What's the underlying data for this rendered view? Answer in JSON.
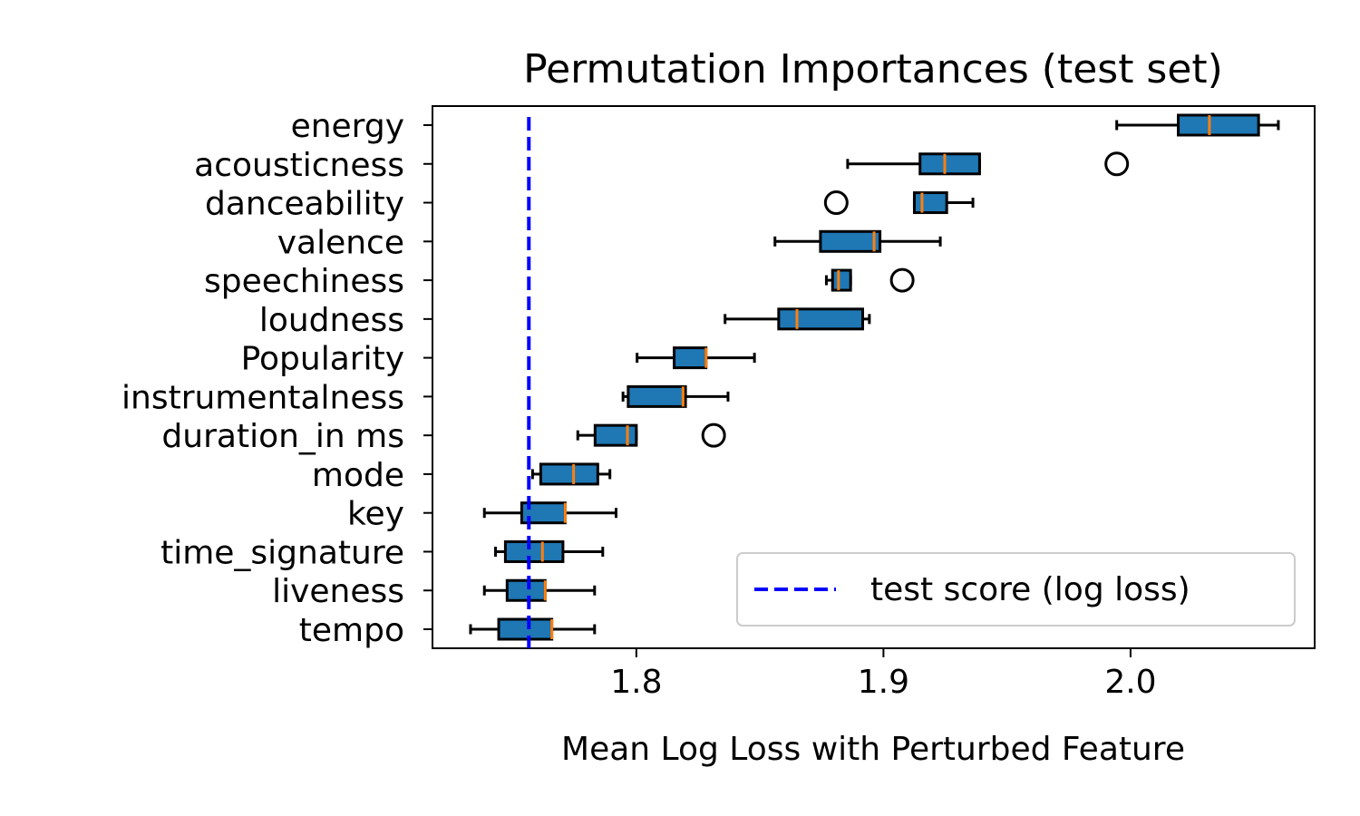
{
  "chart_data": {
    "type": "boxplot",
    "orientation": "horizontal",
    "title": "Permutation Importances (test set)",
    "xlabel": "Mean Log Loss with Perturbed Feature",
    "ylabel": "",
    "xlim": [
      1.7175,
      2.0745
    ],
    "xticks": [
      1.8,
      1.9,
      2.0
    ],
    "xtick_labels": [
      "1.8",
      "1.9",
      "2.0"
    ],
    "grid": false,
    "legend": {
      "placement": "lower-right",
      "entries": [
        {
          "label": "test score (log loss)",
          "color": "#0000ff",
          "style": "dashed"
        }
      ]
    },
    "reference_line": {
      "x": 1.7565,
      "label": "test score (log loss)",
      "color": "#0000ff",
      "style": "dashed"
    },
    "colors": {
      "box_fill": "#1f77b4",
      "median": "#ff7f0e",
      "reference": "#0000ff"
    },
    "boxes": [
      {
        "feature": "energy",
        "whisker_low": 1.9944,
        "q1": 2.0193,
        "median": 2.0319,
        "q3": 2.0518,
        "whisker_high": 2.0598,
        "outliers": []
      },
      {
        "feature": "acousticness",
        "whisker_low": 1.8855,
        "q1": 1.9148,
        "median": 1.9248,
        "q3": 1.9389,
        "whisker_high": 1.9389,
        "outliers": [
          1.9944
        ]
      },
      {
        "feature": "danceability",
        "whisker_low": 1.9125,
        "q1": 1.9125,
        "median": 1.9156,
        "q3": 1.9256,
        "whisker_high": 1.9362,
        "outliers": [
          1.8809
        ]
      },
      {
        "feature": "valence",
        "whisker_low": 1.8561,
        "q1": 1.8745,
        "median": 1.8962,
        "q3": 1.8986,
        "whisker_high": 1.923,
        "outliers": []
      },
      {
        "feature": "speechiness",
        "whisker_low": 1.8769,
        "q1": 1.8794,
        "median": 1.8818,
        "q3": 1.8867,
        "whisker_high": 1.8867,
        "outliers": [
          1.9076
        ]
      },
      {
        "feature": "loudness",
        "whisker_low": 1.8359,
        "q1": 1.8576,
        "median": 1.865,
        "q3": 1.8916,
        "whisker_high": 1.8943,
        "outliers": []
      },
      {
        "feature": "Popularity",
        "whisker_low": 1.8003,
        "q1": 1.8153,
        "median": 1.8282,
        "q3": 1.8282,
        "whisker_high": 1.8478,
        "outliers": []
      },
      {
        "feature": "instrumentalness",
        "whisker_low": 1.7946,
        "q1": 1.7967,
        "median": 1.8189,
        "q3": 1.8199,
        "whisker_high": 1.8371,
        "outliers": []
      },
      {
        "feature": "duration_in ms",
        "whisker_low": 1.7763,
        "q1": 1.7833,
        "median": 1.7964,
        "q3": 1.8,
        "whisker_high": 1.8,
        "outliers": [
          1.8313
        ]
      },
      {
        "feature": "mode",
        "whisker_low": 1.758,
        "q1": 1.7613,
        "median": 1.7746,
        "q3": 1.7844,
        "whisker_high": 1.7893,
        "outliers": []
      },
      {
        "feature": "key",
        "whisker_low": 1.7385,
        "q1": 1.7536,
        "median": 1.7712,
        "q3": 1.7712,
        "whisker_high": 1.7918,
        "outliers": []
      },
      {
        "feature": "time_signature",
        "whisker_low": 1.743,
        "q1": 1.747,
        "median": 1.762,
        "q3": 1.7703,
        "whisker_high": 1.7864,
        "outliers": []
      },
      {
        "feature": "liveness",
        "whisker_low": 1.7385,
        "q1": 1.7477,
        "median": 1.7631,
        "q3": 1.7631,
        "whisker_high": 1.7831,
        "outliers": []
      },
      {
        "feature": "tempo",
        "whisker_low": 1.7329,
        "q1": 1.7443,
        "median": 1.7658,
        "q3": 1.7658,
        "whisker_high": 1.7831,
        "outliers": []
      }
    ]
  }
}
